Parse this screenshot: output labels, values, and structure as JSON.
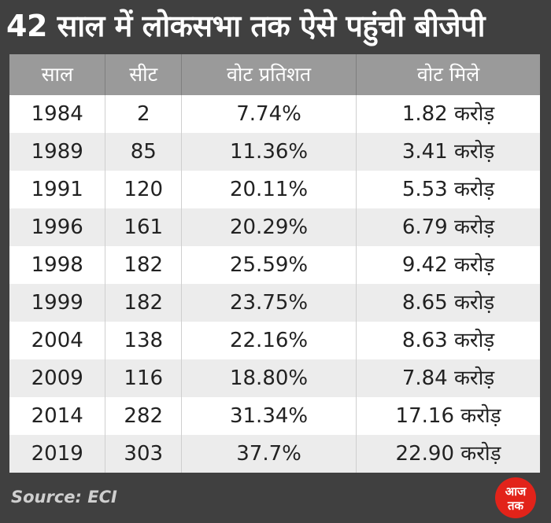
{
  "title": "42 साल में लोकसभा तक ऐसे पहुंची बीजेपी",
  "chart_data": {
    "type": "table",
    "title": "42 साल में लोकसभा तक ऐसे पहुंची बीजेपी",
    "columns": [
      "साल",
      "सीट",
      "वोट प्रतिशत",
      "वोट मिले"
    ],
    "rows": [
      [
        "1984",
        "2",
        "7.74%",
        "1.82 करोड़"
      ],
      [
        "1989",
        "85",
        "11.36%",
        "3.41 करोड़"
      ],
      [
        "1991",
        "120",
        "20.11%",
        "5.53 करोड़"
      ],
      [
        "1996",
        "161",
        "20.29%",
        "6.79 करोड़"
      ],
      [
        "1998",
        "182",
        "25.59%",
        "9.42 करोड़"
      ],
      [
        "1999",
        "182",
        "23.75%",
        "8.65 करोड़"
      ],
      [
        "2004",
        "138",
        "22.16%",
        "8.63 करोड़"
      ],
      [
        "2009",
        "116",
        "18.80%",
        "7.84 करोड़"
      ],
      [
        "2014",
        "282",
        "31.34%",
        "17.16 करोड़"
      ],
      [
        "2019",
        "303",
        "37.7%",
        "22.90 करोड़"
      ]
    ]
  },
  "source": "Source: ECI",
  "logo": {
    "text": "आज तक",
    "icon": "aajtak-logo-icon",
    "color": "#e2231a"
  },
  "colors": {
    "background": "#404040",
    "header_bg": "#9a9a9a",
    "row_odd": "#ffffff",
    "row_even": "#ececec"
  }
}
